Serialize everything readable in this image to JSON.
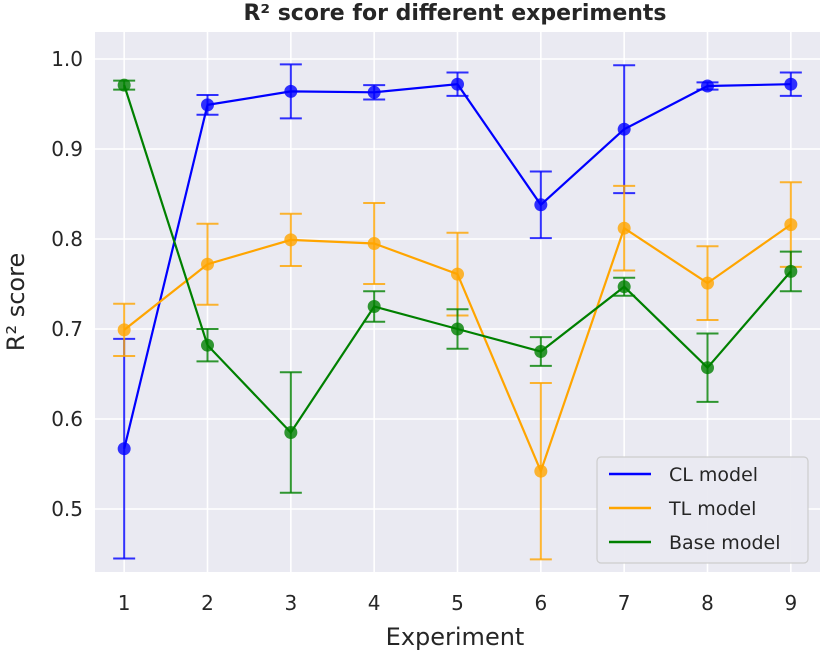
{
  "chart_data": {
    "type": "line",
    "title": "R² score for different experiments",
    "xlabel": "Experiment",
    "ylabel": "R² score",
    "x": [
      1,
      2,
      3,
      4,
      5,
      6,
      7,
      8,
      9
    ],
    "x_ticks": [
      "1",
      "2",
      "3",
      "4",
      "5",
      "6",
      "7",
      "8",
      "9"
    ],
    "y_ticks": [
      "0.5",
      "0.6",
      "0.7",
      "0.8",
      "0.9",
      "1.0"
    ],
    "xlim": [
      0.65,
      9.35
    ],
    "ylim": [
      0.43,
      1.03
    ],
    "grid": true,
    "legend_position": "lower-right",
    "background": "#eaeaf2",
    "series": [
      {
        "name": "CL model",
        "color": "#0000ff",
        "values": [
          0.567,
          0.949,
          0.964,
          0.963,
          0.972,
          0.838,
          0.922,
          0.97,
          0.972
        ],
        "error": [
          0.122,
          0.011,
          0.03,
          0.008,
          0.013,
          0.037,
          0.071,
          0.004,
          0.013
        ]
      },
      {
        "name": "TL model",
        "color": "#ffa500",
        "values": [
          0.699,
          0.772,
          0.799,
          0.795,
          0.761,
          0.542,
          0.812,
          0.751,
          0.816
        ],
        "error": [
          0.029,
          0.045,
          0.029,
          0.045,
          0.046,
          0.098,
          0.047,
          0.041,
          0.047
        ]
      },
      {
        "name": "Base model",
        "color": "#008000",
        "values": [
          0.971,
          0.682,
          0.585,
          0.725,
          0.7,
          0.675,
          0.747,
          0.657,
          0.764
        ],
        "error": [
          0.005,
          0.018,
          0.067,
          0.017,
          0.022,
          0.016,
          0.01,
          0.038,
          0.022
        ]
      }
    ]
  }
}
